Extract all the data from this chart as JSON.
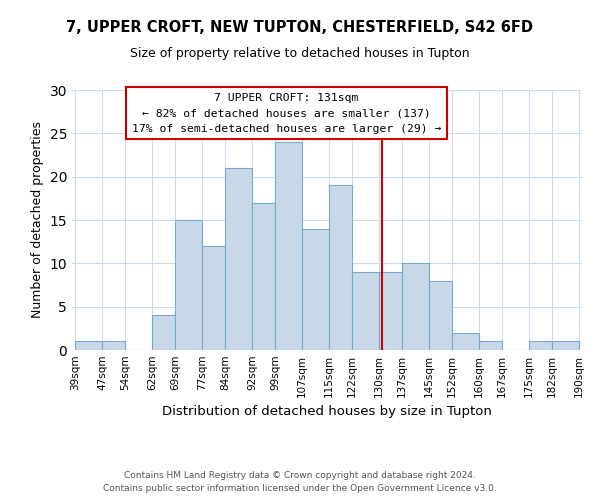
{
  "title1": "7, UPPER CROFT, NEW TUPTON, CHESTERFIELD, S42 6FD",
  "title2": "Size of property relative to detached houses in Tupton",
  "xlabel": "Distribution of detached houses by size in Tupton",
  "ylabel": "Number of detached properties",
  "bins": [
    39,
    47,
    54,
    62,
    69,
    77,
    84,
    92,
    99,
    107,
    115,
    122,
    130,
    137,
    145,
    152,
    160,
    167,
    175,
    182,
    190
  ],
  "counts": [
    1,
    1,
    0,
    4,
    15,
    12,
    21,
    17,
    24,
    14,
    19,
    9,
    9,
    10,
    8,
    2,
    1,
    0,
    1,
    1
  ],
  "bar_color": "#c8d8e8",
  "bar_edge_color": "#7aaaca",
  "property_value": 131,
  "vline_color": "#cc0000",
  "annotation_title": "7 UPPER CROFT: 131sqm",
  "annotation_line1": "← 82% of detached houses are smaller (137)",
  "annotation_line2": "17% of semi-detached houses are larger (29) →",
  "footer1": "Contains HM Land Registry data © Crown copyright and database right 2024.",
  "footer2": "Contains public sector information licensed under the Open Government Licence v3.0.",
  "tick_labels": [
    "39sqm",
    "47sqm",
    "54sqm",
    "62sqm",
    "69sqm",
    "77sqm",
    "84sqm",
    "92sqm",
    "99sqm",
    "107sqm",
    "115sqm",
    "122sqm",
    "130sqm",
    "137sqm",
    "145sqm",
    "152sqm",
    "160sqm",
    "167sqm",
    "175sqm",
    "182sqm",
    "190sqm"
  ],
  "ylim": [
    0,
    30
  ],
  "yticks": [
    0,
    5,
    10,
    15,
    20,
    25,
    30
  ]
}
